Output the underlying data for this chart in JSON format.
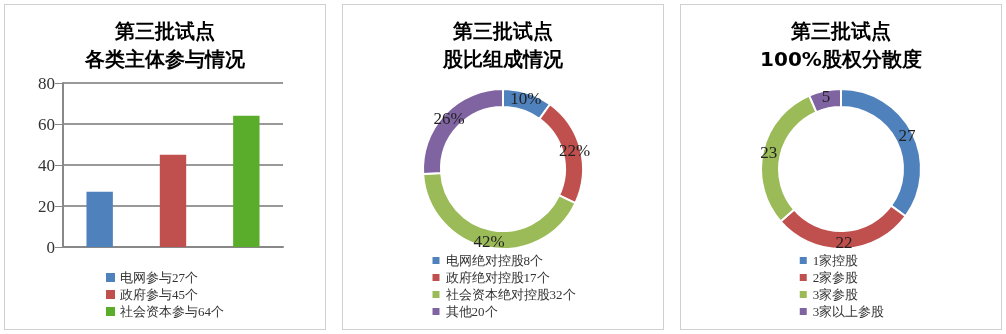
{
  "chart_data": [
    {
      "type": "bar",
      "title": "第三批试点",
      "subtitle": "各类主体参与情况",
      "categories": [
        null,
        null,
        null
      ],
      "series": [
        {
          "name": "电网参与27个",
          "color": "#4f81bd",
          "values": [
            27,
            null,
            null
          ]
        },
        {
          "name": "政府参与45个",
          "color": "#c0504d",
          "values": [
            null,
            45,
            null
          ]
        },
        {
          "name": "社会资本参与64个",
          "color": "#5aad2a",
          "values": [
            null,
            null,
            64
          ]
        }
      ],
      "ylim": [
        0,
        80
      ],
      "yticks": [
        0,
        20,
        40,
        60,
        80
      ],
      "grid": "y",
      "legend": "bottom"
    },
    {
      "type": "donut",
      "title": "第三批试点",
      "subtitle": "股比组成情况",
      "categories": [
        "电网绝对控股8个",
        "政府绝对控股17个",
        "社会资本绝对控股32个",
        "其他20个"
      ],
      "values": [
        10,
        22,
        42,
        26
      ],
      "colors": [
        "#4f81bd",
        "#c0504d",
        "#9bbb59",
        "#8064a2"
      ],
      "value_labels": [
        "10%",
        "22%",
        "42%",
        "26%"
      ],
      "legend": "bottom"
    },
    {
      "type": "donut",
      "title": "第三批试点",
      "subtitle": "100%股权分散度",
      "categories": [
        "1家控股",
        "2家参股",
        "3家参股",
        "3家以上参股"
      ],
      "values": [
        27,
        22,
        23,
        5
      ],
      "colors": [
        "#4f81bd",
        "#c0504d",
        "#9bbb59",
        "#8064a2"
      ],
      "data_labels": true,
      "legend": "bottom"
    }
  ]
}
